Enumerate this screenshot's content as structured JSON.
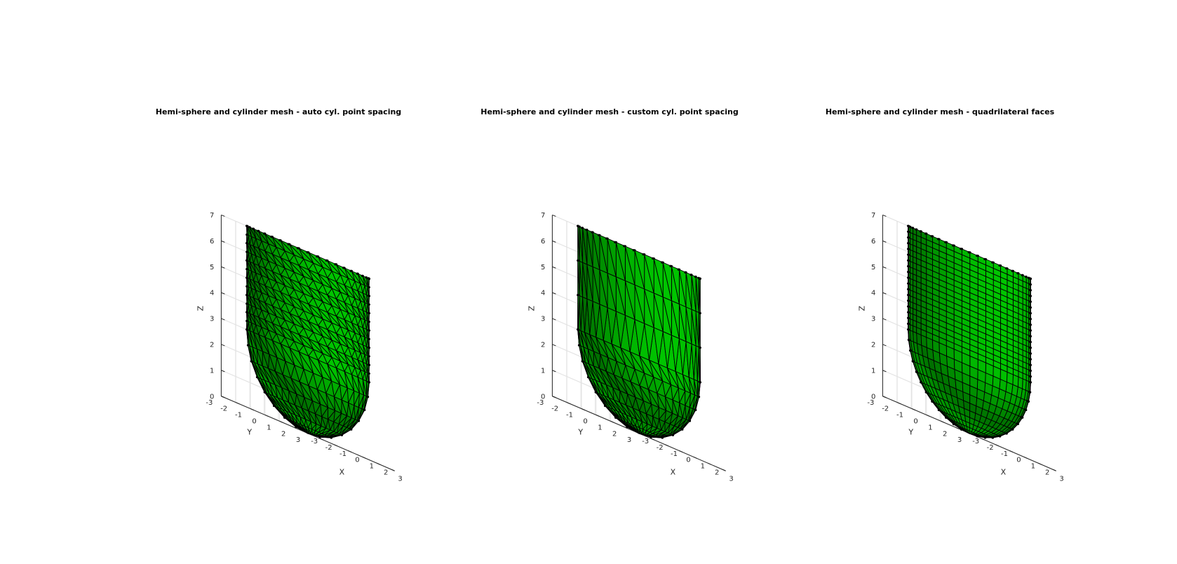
{
  "chart_data": [
    {
      "type": "surface-mesh-3d",
      "title": "Hemi-sphere and cylinder mesh - auto cyl. point spacing",
      "xlabel": "X",
      "ylabel": "Y",
      "zlabel": "Z",
      "xlim": [
        -3,
        3
      ],
      "ylim": [
        -3,
        3
      ],
      "zlim": [
        0,
        7
      ],
      "xticks": [
        "-3",
        "-2",
        "-1",
        "0",
        "1",
        "2",
        "3"
      ],
      "yticks": [
        "-3",
        "-2",
        "-1",
        "0",
        "1",
        "2",
        "3"
      ],
      "zticks": [
        "0",
        "1",
        "2",
        "3",
        "4",
        "5",
        "6",
        "7"
      ],
      "grid": true,
      "radius": 3,
      "cylinder_z_range": [
        3,
        7
      ],
      "face_type": "triangular",
      "face_color": "#00c800",
      "edge_color": "#000000",
      "vertex_marker_color": "#000000"
    },
    {
      "type": "surface-mesh-3d",
      "title": "Hemi-sphere and cylinder mesh - custom cyl. point spacing",
      "xlabel": "X",
      "ylabel": "Y",
      "zlabel": "Z",
      "xlim": [
        -3,
        3
      ],
      "ylim": [
        -3,
        3
      ],
      "zlim": [
        0,
        7
      ],
      "xticks": [
        "-3",
        "-2",
        "-1",
        "0",
        "1",
        "2",
        "3"
      ],
      "yticks": [
        "-3",
        "-2",
        "-1",
        "0",
        "1",
        "2",
        "3"
      ],
      "zticks": [
        "0",
        "1",
        "2",
        "3",
        "4",
        "5",
        "6",
        "7"
      ],
      "grid": true,
      "radius": 3,
      "cylinder_z_range": [
        3,
        7
      ],
      "face_type": "triangular",
      "face_color": "#00c800",
      "edge_color": "#000000",
      "vertex_marker_color": "#000000"
    },
    {
      "type": "surface-mesh-3d",
      "title": "Hemi-sphere and cylinder mesh - quadrilateral faces",
      "xlabel": "X",
      "ylabel": "Y",
      "zlabel": "Z",
      "xlim": [
        -3,
        3
      ],
      "ylim": [
        -3,
        3
      ],
      "zlim": [
        0,
        7
      ],
      "xticks": [
        "-3",
        "-2",
        "-1",
        "0",
        "1",
        "2",
        "3"
      ],
      "yticks": [
        "-3",
        "-2",
        "-1",
        "0",
        "1",
        "2",
        "3"
      ],
      "zticks": [
        "0",
        "1",
        "2",
        "3",
        "4",
        "5",
        "6",
        "7"
      ],
      "grid": true,
      "radius": 3,
      "cylinder_z_range": [
        3,
        7
      ],
      "face_type": "quadrilateral",
      "face_color": "#00c800",
      "edge_color": "#000000",
      "vertex_marker_color": "#000000"
    }
  ]
}
